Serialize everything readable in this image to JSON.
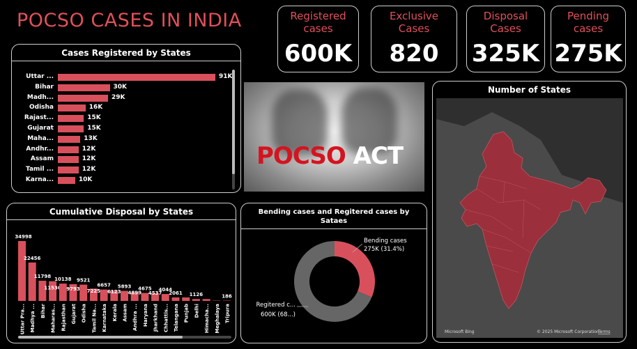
{
  "title": "POCSO CASES IN INDIA",
  "kpis": [
    {
      "label": "Registered cases",
      "value": "600K"
    },
    {
      "label": "Exclusive Cases",
      "value": "820"
    },
    {
      "label": "Disposal Cases",
      "value": "325K"
    },
    {
      "label": "Pending cases",
      "value": "275K"
    }
  ],
  "states_panel": {
    "title": "Cases Registered by States",
    "rows": [
      {
        "name": "Uttar ...",
        "value": 91,
        "label": "91K"
      },
      {
        "name": "Bihar",
        "value": 30,
        "label": "30K"
      },
      {
        "name": "Madh...",
        "value": 29,
        "label": "29K"
      },
      {
        "name": "Odisha",
        "value": 16,
        "label": "16K"
      },
      {
        "name": "Rajast...",
        "value": 15,
        "label": "15K"
      },
      {
        "name": "Gujarat",
        "value": 15,
        "label": "15K"
      },
      {
        "name": "Maha...",
        "value": 13,
        "label": "13K"
      },
      {
        "name": "Andhr...",
        "value": 12,
        "label": "12K"
      },
      {
        "name": "Assam",
        "value": 12,
        "label": "12K"
      },
      {
        "name": "Tamil ...",
        "value": 12,
        "label": "12K"
      },
      {
        "name": "Karna...",
        "value": 10,
        "label": "10K"
      }
    ]
  },
  "banner": {
    "word1": "POCSO",
    "word2": "ACT"
  },
  "map_panel": {
    "title": "Number of States",
    "attribution_left": "Microsoft Bing",
    "attribution_right": "© 2025 Microsoft Corporation",
    "terms": "Terms"
  },
  "chart_data": [
    {
      "type": "bar",
      "title": "Cumulative Disposal by States",
      "categories": [
        "Uttar Pra...",
        "Madhya ...",
        "Bihar",
        "Maharas...",
        "Rajasthan",
        "Gujarat",
        "Odisha",
        "Tamil Na...",
        "Karnataka",
        "Kerala",
        "Assam",
        "Andhra ...",
        "Haryana",
        "Jharkhand",
        "Chhattis...",
        "Telangana",
        "Punjab",
        "Delhi",
        "Himacha...",
        "Meghalaya",
        "Tripura"
      ],
      "values": [
        34998,
        22456,
        11798,
        11530,
        10138,
        9793,
        9521,
        7225,
        6657,
        6123,
        5893,
        4899,
        4675,
        4537,
        4044,
        2061,
        2061,
        1126,
        1126,
        186,
        186
      ],
      "labels": [
        "34998",
        "22456",
        "11798",
        "11530",
        "10138",
        "9793",
        "9521",
        "7225",
        "6657",
        "6123",
        "5893",
        "4899",
        "4675",
        "4537",
        "4044",
        "2061",
        "",
        "1126",
        "",
        "",
        "186"
      ]
    },
    {
      "type": "pie",
      "title": "Bending cases and Regitered cases by Sataes",
      "slices": [
        {
          "name": "Bending cases",
          "label": "275K (31.4%)",
          "value": 31.4,
          "color": "#d9505d"
        },
        {
          "name": "Regitered c...",
          "label": "600K (68...)",
          "value": 68.6,
          "color": "#666666"
        }
      ]
    }
  ]
}
